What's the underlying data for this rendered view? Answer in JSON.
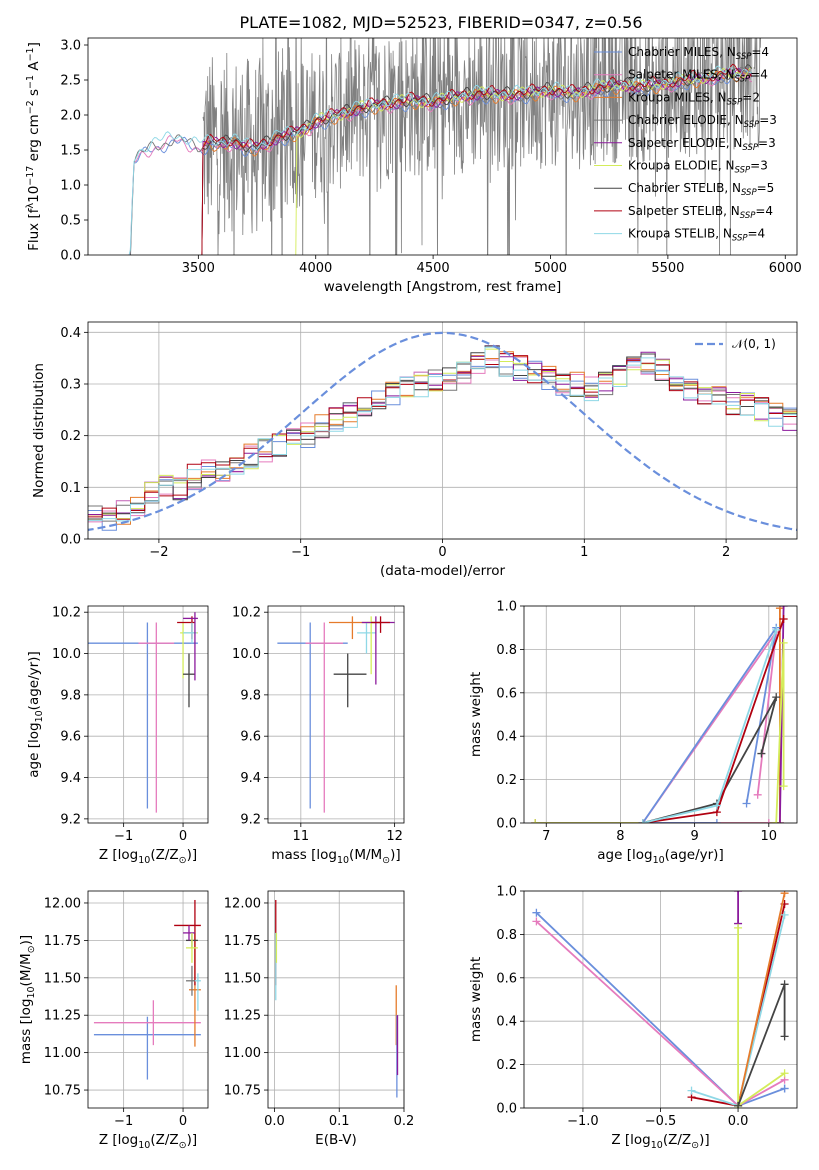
{
  "figure": {
    "title": "PLATE=1082, MJD=52523, FIBERID=0347, z=0.56",
    "colors": {
      "chabrier_miles": "#6a8fdc",
      "salpeter_miles": "#e57bbd",
      "kroupa_miles": "#e57b2b",
      "chabrier_elodie": "#777777",
      "salpeter_elodie": "#8b1a9c",
      "kroupa_elodie": "#d4ec5a",
      "chabrier_stelib": "#444444",
      "salpeter_stelib": "#b00010",
      "kroupa_stelib": "#8fd8e6",
      "gauss": "#6a8fdc"
    }
  },
  "chart_data": [
    {
      "id": "spectrum",
      "type": "line",
      "title": "PLATE=1082, MJD=52523, FIBERID=0347, z=0.56",
      "xlabel": "wavelength [Angstrom, rest frame]",
      "ylabel_parts": [
        "Flux [f",
        "λ",
        "10",
        "−17",
        " erg cm",
        "−2",
        " s",
        "−1",
        " A",
        "−1",
        "]"
      ],
      "xlim": [
        3030,
        6050
      ],
      "ylim": [
        0,
        3.1
      ],
      "xticks": [
        3500,
        4000,
        4500,
        5000,
        5500,
        6000
      ],
      "yticks": [
        0.0,
        0.5,
        1.0,
        1.5,
        2.0,
        2.5,
        3.0
      ],
      "grid": false,
      "legend_position": "top-right",
      "legend": [
        {
          "label": "Chabrier MILES, N",
          "sub": "SSP",
          "tail": "=4",
          "color": "#6a8fdc"
        },
        {
          "label": "Salpeter MILES, N",
          "sub": "SSP",
          "tail": "=4",
          "color": "#e57bbd"
        },
        {
          "label": "Kroupa MILES, N",
          "sub": "SSP",
          "tail": "=2",
          "color": "#e57b2b"
        },
        {
          "label": "Chabrier ELODIE, N",
          "sub": "SSP",
          "tail": "=3",
          "color": "#777777"
        },
        {
          "label": "Salpeter ELODIE, N",
          "sub": "SSP",
          "tail": "=3",
          "color": "#8b1a9c"
        },
        {
          "label": "Kroupa ELODIE, N",
          "sub": "SSP",
          "tail": "=3",
          "color": "#d4ec5a"
        },
        {
          "label": "Chabrier STELIB, N",
          "sub": "SSP",
          "tail": "=5",
          "color": "#444444"
        },
        {
          "label": "Salpeter STELIB, N",
          "sub": "SSP",
          "tail": "=4",
          "color": "#b00010"
        },
        {
          "label": "Kroupa STELIB, N",
          "sub": "SSP",
          "tail": "=4",
          "color": "#8fd8e6"
        }
      ],
      "model_continuum": {
        "x": [
          3210,
          3225,
          3250,
          3300,
          3350,
          3400,
          3450,
          3500,
          3550,
          3600,
          3650,
          3700,
          3750,
          3800,
          3850,
          3900,
          3950,
          4000,
          4100,
          4200,
          4300,
          4400,
          4500,
          4600,
          4700,
          4800,
          4900,
          5000,
          5100,
          5200,
          5300,
          5400,
          5500,
          5600,
          5700,
          5800,
          5860
        ],
        "y": [
          0.0,
          1.35,
          1.45,
          1.55,
          1.6,
          1.68,
          1.62,
          1.55,
          1.6,
          1.58,
          1.62,
          1.55,
          1.52,
          1.6,
          1.7,
          1.72,
          1.78,
          1.9,
          2.0,
          2.1,
          2.15,
          2.2,
          2.18,
          2.25,
          2.3,
          2.28,
          2.3,
          2.35,
          2.3,
          2.38,
          2.42,
          2.4,
          2.45,
          2.5,
          2.55,
          2.6,
          2.6
        ]
      },
      "model_start_wavelengths": {
        "miles": 3210,
        "elodie": 3520,
        "stelib": 3920
      }
    },
    {
      "id": "residuals",
      "type": "histogram",
      "xlabel": "(data-model)/error",
      "ylabel": "Normed distribution",
      "xlim": [
        -2.5,
        2.5
      ],
      "ylim": [
        0,
        0.42
      ],
      "xticks": [
        -2,
        -1,
        0,
        1,
        2
      ],
      "yticks": [
        0.0,
        0.1,
        0.2,
        0.3,
        0.4
      ],
      "grid": true,
      "legend_position": "top-right",
      "legend": [
        {
          "label": "𝒩(0, 1)",
          "color": "#6a8fdc",
          "style": "dashed"
        }
      ],
      "bin_width": 0.1,
      "bin_start": -2.5,
      "envelope": [
        0.04,
        0.04,
        0.05,
        0.07,
        0.09,
        0.1,
        0.1,
        0.12,
        0.13,
        0.13,
        0.15,
        0.16,
        0.17,
        0.18,
        0.19,
        0.2,
        0.22,
        0.23,
        0.24,
        0.25,
        0.27,
        0.28,
        0.29,
        0.3,
        0.31,
        0.31,
        0.32,
        0.34,
        0.35,
        0.34,
        0.33,
        0.32,
        0.31,
        0.3,
        0.3,
        0.29,
        0.3,
        0.32,
        0.33,
        0.34,
        0.33,
        0.31,
        0.29,
        0.28,
        0.27,
        0.26,
        0.26,
        0.25,
        0.24,
        0.23,
        0.22,
        0.21,
        0.2,
        0.2,
        0.19,
        0.18,
        0.17,
        0.16,
        0.15,
        0.14,
        0.13,
        0.12,
        0.11,
        0.11,
        0.1,
        0.1,
        0.09,
        0.09,
        0.08,
        0.08
      ]
    },
    {
      "id": "age_vs_Z",
      "type": "errorbar",
      "xlabel_parts": [
        "Z [log",
        "10",
        "(Z/Z",
        "⊙",
        ")]"
      ],
      "ylabel_parts": [
        "age  [log",
        "10",
        "(age/yr)]"
      ],
      "xlim": [
        -1.6,
        0.42
      ],
      "ylim": [
        9.18,
        10.23
      ],
      "xticks": [
        -1,
        0
      ],
      "yticks": [
        9.2,
        9.4,
        9.6,
        9.8,
        10.0,
        10.2
      ],
      "grid": true,
      "points": [
        {
          "x": -0.6,
          "xerr": [
            1.0,
            0.85
          ],
          "y": 10.05,
          "yerr": [
            0.8,
            0.1
          ],
          "color": "#6a8fdc"
        },
        {
          "x": -0.45,
          "xerr": [
            0.3,
            0.3
          ],
          "y": 10.05,
          "yerr": [
            0.82,
            0.1
          ],
          "color": "#e57bbd"
        },
        {
          "x": 0.0,
          "xerr": [
            0.05,
            0.25
          ],
          "y": 10.1,
          "yerr": [
            0.22,
            0.05
          ],
          "color": "#d4ec5a"
        },
        {
          "x": 0.15,
          "xerr": [
            0.25,
            0.05
          ],
          "y": 10.15,
          "yerr": [
            0.08,
            0.03
          ],
          "color": "#b00010"
        },
        {
          "x": 0.1,
          "xerr": [
            0.1,
            0.1
          ],
          "y": 9.9,
          "yerr": [
            0.16,
            0.1
          ],
          "color": "#444444"
        },
        {
          "x": 0.15,
          "xerr": [
            0.15,
            0.08
          ],
          "y": 10.1,
          "yerr": [
            0.05,
            0.05
          ],
          "color": "#8fd8e6"
        },
        {
          "x": 0.2,
          "xerr": [
            0.2,
            0.05
          ],
          "y": 10.17,
          "yerr": [
            0.3,
            0.03
          ],
          "color": "#8b1a9c"
        }
      ]
    },
    {
      "id": "age_vs_mass",
      "type": "errorbar",
      "xlabel_parts": [
        "mass [log",
        "10",
        "(M/M",
        "⊙",
        ")]"
      ],
      "ylabel_parts": [],
      "xlim": [
        10.65,
        12.1
      ],
      "ylim": [
        9.18,
        10.23
      ],
      "xticks": [
        11,
        12
      ],
      "yticks": [
        9.2,
        9.4,
        9.6,
        9.8,
        10.0,
        10.2
      ],
      "grid": true,
      "points": [
        {
          "x": 11.1,
          "xerr": [
            0.35,
            0.4
          ],
          "y": 10.05,
          "yerr": [
            0.8,
            0.1
          ],
          "color": "#6a8fdc"
        },
        {
          "x": 11.25,
          "xerr": [
            0.2,
            0.2
          ],
          "y": 10.05,
          "yerr": [
            0.82,
            0.1
          ],
          "color": "#e57bbd"
        },
        {
          "x": 11.5,
          "xerr": [
            0.15,
            0.2
          ],
          "y": 9.9,
          "yerr": [
            0.16,
            0.1
          ],
          "color": "#444444"
        },
        {
          "x": 11.55,
          "xerr": [
            0.25,
            0.3
          ],
          "y": 10.15,
          "yerr": [
            0.08,
            0.03
          ],
          "color": "#e57b2b"
        },
        {
          "x": 11.7,
          "xerr": [
            0.1,
            0.1
          ],
          "y": 10.1,
          "yerr": [
            0.1,
            0.05
          ],
          "color": "#8fd8e6"
        },
        {
          "x": 11.75,
          "xerr": [
            0.05,
            0.1
          ],
          "y": 10.15,
          "yerr": [
            0.25,
            0.03
          ],
          "color": "#d4ec5a"
        },
        {
          "x": 11.8,
          "xerr": [
            0.15,
            0.2
          ],
          "y": 10.15,
          "yerr": [
            0.3,
            0.03
          ],
          "color": "#8b1a9c"
        },
        {
          "x": 11.85,
          "xerr": [
            0.1,
            0.1
          ],
          "y": 10.15,
          "yerr": [
            0.05,
            0.03
          ],
          "color": "#b00010"
        }
      ]
    },
    {
      "id": "weight_vs_age",
      "type": "line",
      "xlabel_parts": [
        "age  [log",
        "10",
        "(age/yr)]"
      ],
      "ylabel": "mass weight",
      "xlim": [
        6.7,
        10.38
      ],
      "ylim": [
        0,
        1.0
      ],
      "xticks": [
        7,
        8,
        9,
        10
      ],
      "yticks": [
        0.0,
        0.2,
        0.4,
        0.6,
        0.8,
        1.0
      ],
      "grid": true,
      "series": [
        {
          "color": "#e57b2b",
          "x": [
            6.85,
            10.15,
            10.15
          ],
          "y": [
            0.0,
            0.0,
            0.99
          ]
        },
        {
          "color": "#8b1a9c",
          "x": [
            6.85,
            10.15,
            10.2
          ],
          "y": [
            0.0,
            0.0,
            1.0
          ]
        },
        {
          "color": "#d4ec5a",
          "x": [
            6.85,
            10.1,
            10.2,
            10.2
          ],
          "y": [
            0.0,
            0.0,
            0.83,
            0.17
          ]
        },
        {
          "color": "#e57bbd",
          "x": [
            9.85,
            10.1,
            8.3,
            10.0
          ],
          "y": [
            0.13,
            0.88,
            0.0,
            0.0
          ]
        },
        {
          "color": "#6a8fdc",
          "x": [
            9.7,
            10.1,
            8.3,
            9.3
          ],
          "y": [
            0.09,
            0.9,
            0.0,
            0.0
          ]
        },
        {
          "color": "#444444",
          "x": [
            9.9,
            10.1,
            9.3,
            8.3
          ],
          "y": [
            0.32,
            0.58,
            0.09,
            0.0
          ]
        },
        {
          "color": "#b00010",
          "x": [
            10.2,
            9.3,
            8.3
          ],
          "y": [
            0.94,
            0.05,
            0.0
          ]
        },
        {
          "color": "#8fd8e6",
          "x": [
            10.1,
            9.3,
            8.3
          ],
          "y": [
            0.89,
            0.08,
            0.0
          ]
        }
      ]
    },
    {
      "id": "mass_vs_Z",
      "type": "errorbar",
      "xlabel_parts": [
        "Z [log",
        "10",
        "(Z/Z",
        "⊙",
        ")]"
      ],
      "ylabel_parts": [
        "mass [log",
        "10",
        "(M/M",
        "⊙",
        ")]"
      ],
      "xlim": [
        -1.6,
        0.42
      ],
      "ylim": [
        10.63,
        12.08
      ],
      "xticks": [
        -1,
        0
      ],
      "yticks": [
        10.75,
        11.0,
        11.25,
        11.5,
        11.75,
        12.0
      ],
      "grid": true,
      "points": [
        {
          "x": -0.6,
          "xerr": [
            0.9,
            0.9
          ],
          "y": 11.12,
          "yerr": [
            0.3,
            0.12
          ],
          "color": "#6a8fdc"
        },
        {
          "x": -0.5,
          "xerr": [
            1.0,
            0.8
          ],
          "y": 11.2,
          "yerr": [
            0.15,
            0.15
          ],
          "color": "#e57bbd"
        },
        {
          "x": 0.2,
          "xerr": [
            0.1,
            0.1
          ],
          "y": 11.42,
          "yerr": [
            0.38,
            0.38
          ],
          "color": "#e57b2b"
        },
        {
          "x": 0.2,
          "xerr": [
            0.35,
            0.1
          ],
          "y": 11.85,
          "yerr": [
            0.4,
            0.17
          ],
          "color": "#b00010"
        },
        {
          "x": 0.15,
          "xerr": [
            0.1,
            0.1
          ],
          "y": 11.75,
          "yerr": [
            0.05,
            0.05
          ],
          "color": "#444444"
        },
        {
          "x": 0.1,
          "xerr": [
            0.1,
            0.1
          ],
          "y": 11.8,
          "yerr": [
            0.05,
            0.05
          ],
          "color": "#8b1a9c"
        },
        {
          "x": 0.15,
          "xerr": [
            0.1,
            0.1
          ],
          "y": 11.7,
          "yerr": [
            0.1,
            0.1
          ],
          "color": "#d4ec5a"
        },
        {
          "x": 0.25,
          "xerr": [
            0.05,
            0.05
          ],
          "y": 11.48,
          "yerr": [
            0.2,
            0.05
          ],
          "color": "#8fd8e6"
        },
        {
          "x": 0.15,
          "xerr": [
            0.1,
            0.05
          ],
          "y": 11.48,
          "yerr": [
            0.1,
            0.1
          ],
          "color": "#777777"
        }
      ]
    },
    {
      "id": "mass_vs_ebv",
      "type": "errorbar",
      "xlabel": "E(B-V)",
      "xlim": [
        -0.01,
        0.2
      ],
      "ylim": [
        10.63,
        12.08
      ],
      "xticks": [
        0.0,
        0.1,
        0.2
      ],
      "yticks": [
        10.75,
        11.0,
        11.25,
        11.5,
        11.75,
        12.0
      ],
      "grid": true,
      "points": [
        {
          "x": 0.002,
          "y": 11.85,
          "yerr": [
            0.4,
            0.17
          ],
          "color": "#b00010"
        },
        {
          "x": 0.002,
          "y": 11.6,
          "yerr": [
            0.25,
            0.2
          ],
          "color": "#8fd8e6"
        },
        {
          "x": 0.003,
          "y": 11.7,
          "yerr": [
            0.1,
            0.1
          ],
          "color": "#d4ec5a"
        },
        {
          "x": 0.188,
          "y": 11.2,
          "yerr": [
            0.15,
            0.25
          ],
          "color": "#e57b2b"
        },
        {
          "x": 0.189,
          "y": 11.05,
          "yerr": [
            0.35,
            0.2
          ],
          "color": "#6a8fdc"
        },
        {
          "x": 0.19,
          "y": 11.0,
          "yerr": [
            0.15,
            0.25
          ],
          "color": "#8b1a9c"
        }
      ]
    },
    {
      "id": "weight_vs_Z",
      "type": "line",
      "xlabel_parts": [
        "Z [log",
        "10",
        "(Z/Z",
        "⊙",
        ")]"
      ],
      "ylabel": "mass weight",
      "xlim": [
        -1.38,
        0.38
      ],
      "ylim": [
        0,
        1.0
      ],
      "xticks": [
        -1.0,
        -0.5,
        0.0
      ],
      "yticks": [
        0.0,
        0.2,
        0.4,
        0.6,
        0.8,
        1.0
      ],
      "grid": true,
      "series": [
        {
          "color": "#6a8fdc",
          "x": [
            -1.3,
            0.0,
            0.3,
            0.3
          ],
          "y": [
            0.9,
            0.01,
            0.09,
            0.09
          ]
        },
        {
          "color": "#e57bbd",
          "x": [
            -1.3,
            0.0,
            0.3
          ],
          "y": [
            0.86,
            0.01,
            0.13
          ]
        },
        {
          "color": "#b00010",
          "x": [
            -0.3,
            0.0,
            0.3
          ],
          "y": [
            0.05,
            0.01,
            0.94
          ]
        },
        {
          "color": "#8fd8e6",
          "x": [
            -0.3,
            0.0,
            0.3
          ],
          "y": [
            0.08,
            0.01,
            0.89
          ]
        },
        {
          "color": "#e57b2b",
          "x": [
            0.0,
            0.3
          ],
          "y": [
            0.01,
            0.99
          ]
        },
        {
          "color": "#8b1a9c",
          "x": [
            0.0,
            0.0
          ],
          "y": [
            0.85,
            1.0
          ]
        },
        {
          "color": "#d4ec5a",
          "x": [
            0.0,
            0.0,
            0.0,
            0.3
          ],
          "y": [
            0.0,
            0.83,
            0.01,
            0.16
          ]
        },
        {
          "color": "#444444",
          "x": [
            0.0,
            0.3,
            0.3
          ],
          "y": [
            0.01,
            0.57,
            0.33
          ]
        }
      ]
    }
  ]
}
